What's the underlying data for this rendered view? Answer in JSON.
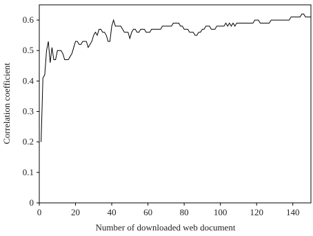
{
  "chart_data": {
    "type": "line",
    "x_label": "Number of downloaded web document",
    "y_label": "Correlation coefficient",
    "x": [
      1,
      2,
      3,
      4,
      5,
      6,
      7,
      8,
      9,
      10,
      11,
      12,
      13,
      14,
      15,
      16,
      17,
      18,
      19,
      20,
      21,
      22,
      23,
      24,
      25,
      26,
      27,
      28,
      29,
      30,
      31,
      32,
      33,
      34,
      35,
      36,
      37,
      38,
      39,
      40,
      41,
      42,
      43,
      44,
      45,
      46,
      47,
      48,
      49,
      50,
      51,
      52,
      53,
      54,
      55,
      56,
      57,
      58,
      59,
      60,
      61,
      62,
      63,
      64,
      65,
      66,
      67,
      68,
      69,
      70,
      71,
      72,
      73,
      74,
      75,
      76,
      77,
      78,
      79,
      80,
      81,
      82,
      83,
      84,
      85,
      86,
      87,
      88,
      89,
      90,
      91,
      92,
      93,
      94,
      95,
      96,
      97,
      98,
      99,
      100,
      101,
      102,
      103,
      104,
      105,
      106,
      107,
      108,
      109,
      110,
      111,
      112,
      113,
      114,
      115,
      116,
      117,
      118,
      119,
      120,
      121,
      122,
      123,
      124,
      125,
      126,
      127,
      128,
      129,
      130,
      131,
      132,
      133,
      134,
      135,
      136,
      137,
      138,
      139,
      140,
      141,
      142,
      143,
      144,
      145,
      146,
      147,
      148,
      149,
      150
    ],
    "values": [
      0.2,
      0.41,
      0.42,
      0.5,
      0.53,
      0.46,
      0.51,
      0.47,
      0.47,
      0.5,
      0.5,
      0.5,
      0.49,
      0.47,
      0.47,
      0.47,
      0.48,
      0.49,
      0.51,
      0.53,
      0.53,
      0.52,
      0.52,
      0.53,
      0.53,
      0.53,
      0.51,
      0.52,
      0.53,
      0.55,
      0.56,
      0.55,
      0.57,
      0.57,
      0.56,
      0.56,
      0.55,
      0.53,
      0.53,
      0.58,
      0.6,
      0.58,
      0.58,
      0.58,
      0.58,
      0.57,
      0.56,
      0.56,
      0.56,
      0.54,
      0.56,
      0.57,
      0.57,
      0.56,
      0.56,
      0.57,
      0.57,
      0.57,
      0.56,
      0.56,
      0.56,
      0.57,
      0.57,
      0.57,
      0.57,
      0.57,
      0.57,
      0.58,
      0.58,
      0.58,
      0.58,
      0.58,
      0.58,
      0.59,
      0.59,
      0.59,
      0.59,
      0.58,
      0.58,
      0.57,
      0.57,
      0.57,
      0.56,
      0.56,
      0.56,
      0.55,
      0.55,
      0.56,
      0.56,
      0.57,
      0.57,
      0.58,
      0.58,
      0.58,
      0.57,
      0.57,
      0.57,
      0.58,
      0.58,
      0.58,
      0.58,
      0.58,
      0.59,
      0.58,
      0.59,
      0.58,
      0.59,
      0.58,
      0.59,
      0.59,
      0.59,
      0.59,
      0.59,
      0.59,
      0.59,
      0.59,
      0.59,
      0.59,
      0.6,
      0.6,
      0.6,
      0.59,
      0.59,
      0.59,
      0.59,
      0.59,
      0.59,
      0.6,
      0.6,
      0.6,
      0.6,
      0.6,
      0.6,
      0.6,
      0.6,
      0.6,
      0.6,
      0.6,
      0.61,
      0.61,
      0.61,
      0.61,
      0.61,
      0.61,
      0.62,
      0.62,
      0.61,
      0.61,
      0.61,
      0.61
    ],
    "color": "#000000",
    "xlim": [
      0,
      150
    ],
    "xticks": [
      0,
      20,
      40,
      60,
      80,
      100,
      120,
      140
    ],
    "ylim": [
      0,
      0.65
    ],
    "yticks": [
      0,
      0.1,
      0.2,
      0.3,
      0.4,
      0.5,
      0.6
    ]
  }
}
